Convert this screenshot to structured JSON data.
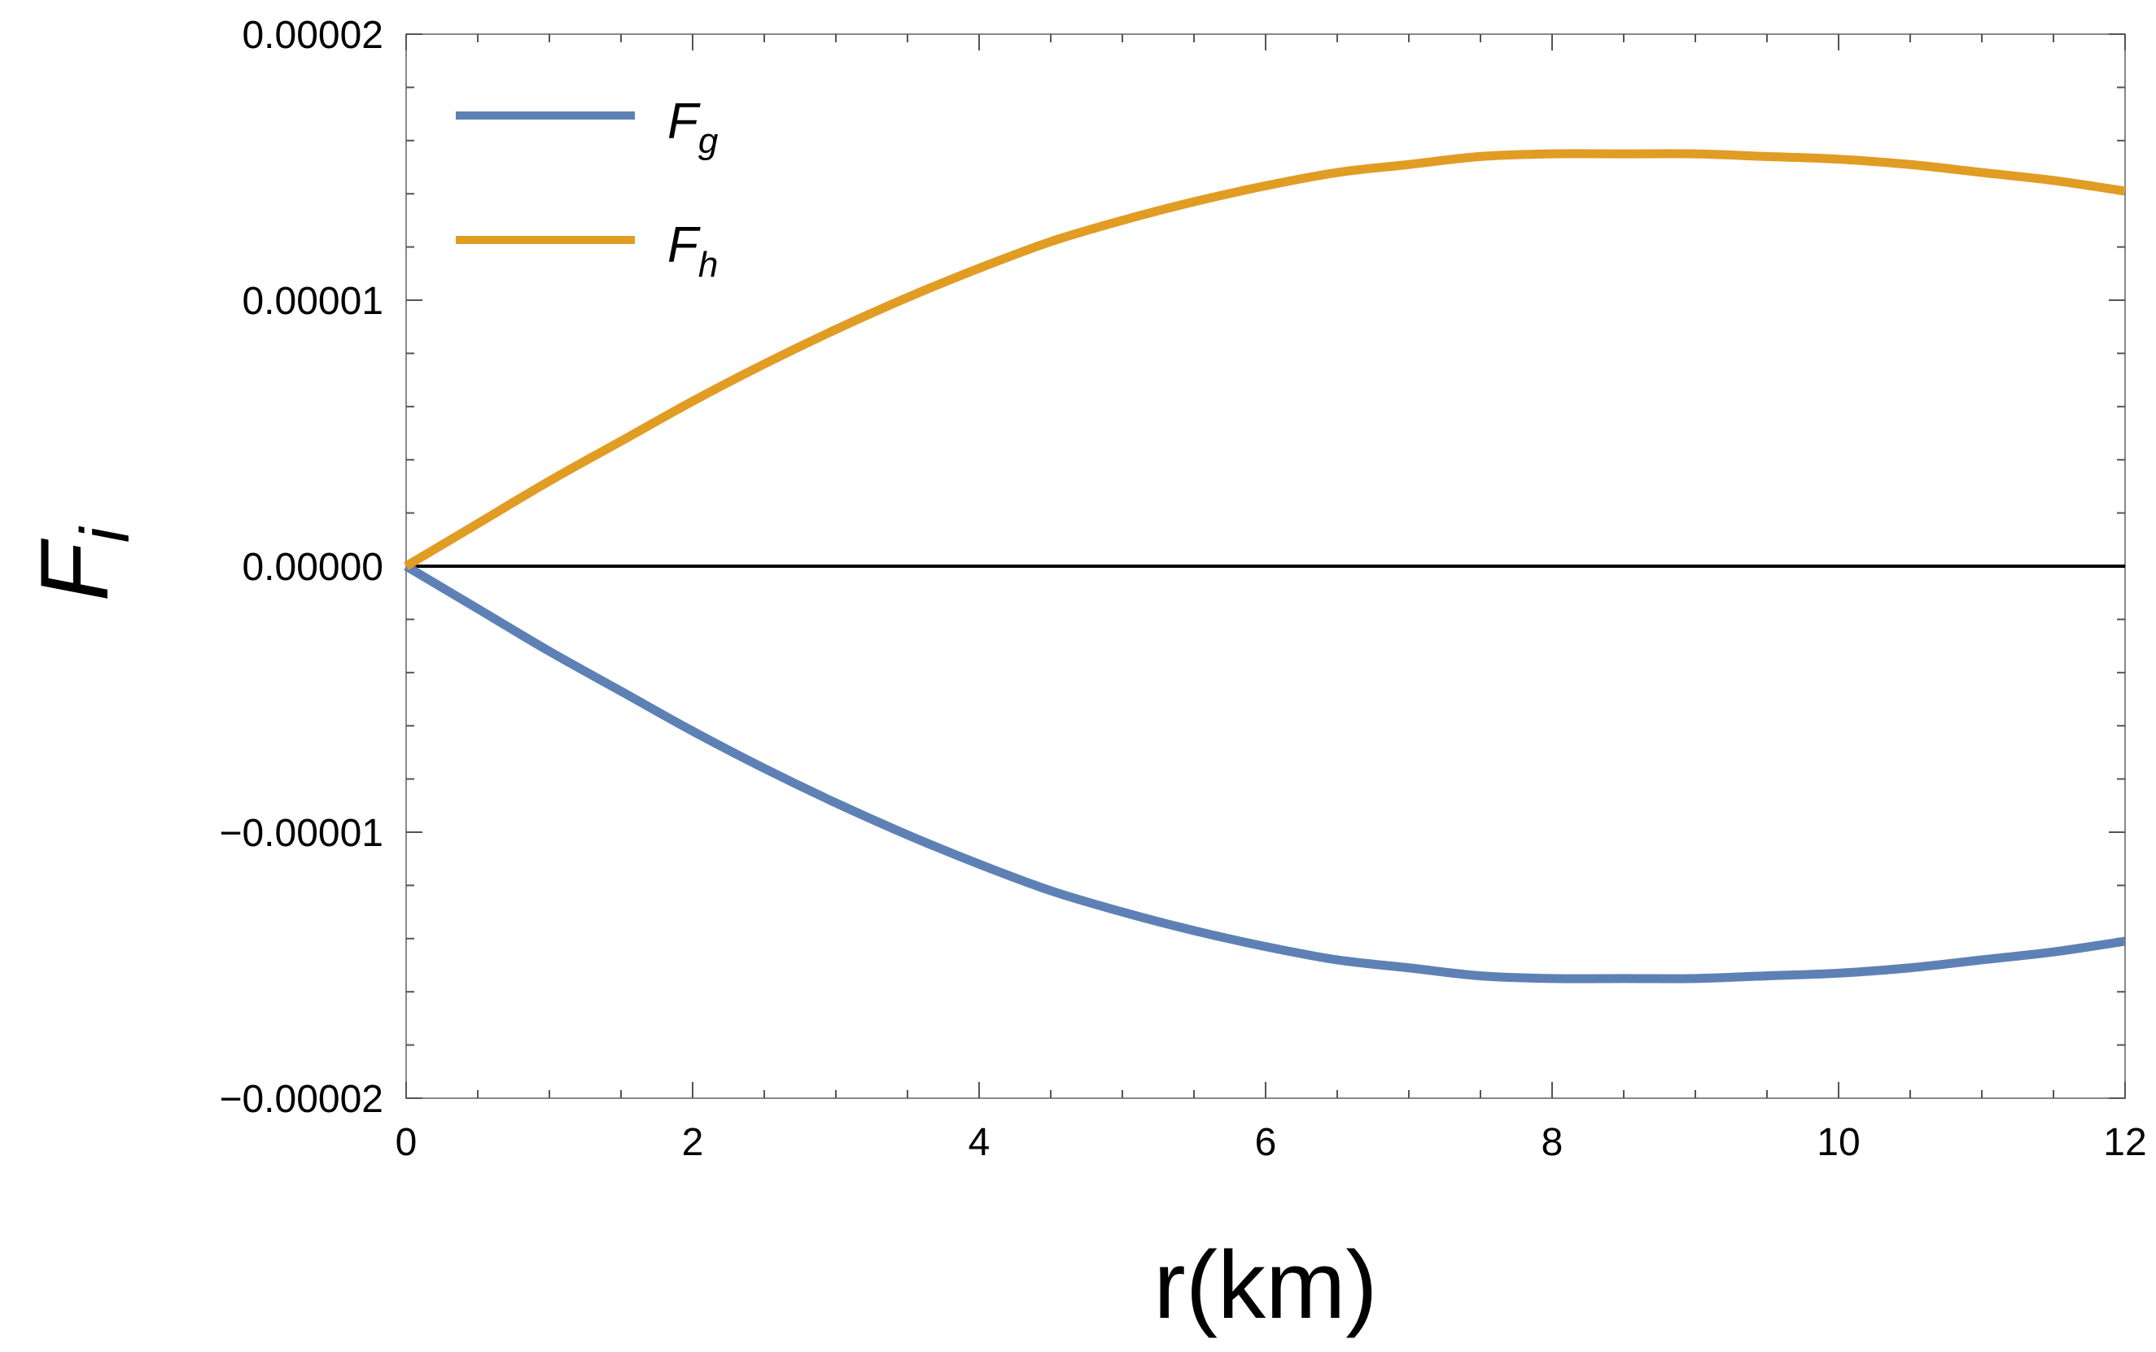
{
  "chart_data": {
    "type": "line",
    "title": "",
    "xlabel": "r(km)",
    "ylabel": {
      "main": "F",
      "sub": "i"
    },
    "xlim": [
      0,
      12
    ],
    "ylim": [
      -2e-05,
      2e-05
    ],
    "x_ticks": [
      0,
      2,
      4,
      6,
      8,
      10,
      12
    ],
    "x_tick_labels": [
      "0",
      "2",
      "4",
      "6",
      "8",
      "10",
      "12"
    ],
    "y_ticks": [
      -2e-05,
      -1e-05,
      0,
      1e-05,
      2e-05
    ],
    "y_tick_labels": [
      "−0.00002",
      "−0.00001",
      "0.00000",
      "0.00001",
      "0.00002"
    ],
    "grid": false,
    "zero_line": true,
    "legend_position": "top-left",
    "series": [
      {
        "name": {
          "main": "F",
          "sub": "g"
        },
        "color": "#5e81b5",
        "x": [
          0,
          0.5,
          1,
          1.5,
          2,
          2.5,
          3,
          3.5,
          4,
          4.5,
          5,
          5.5,
          6,
          6.5,
          7,
          7.5,
          8,
          8.5,
          9,
          9.5,
          10,
          10.5,
          11,
          11.5,
          12
        ],
        "y": [
          0,
          -1.6e-06,
          -3.2e-06,
          -4.7e-06,
          -6.2e-06,
          -7.6e-06,
          -8.9e-06,
          -1.01e-05,
          -1.12e-05,
          -1.22e-05,
          -1.3e-05,
          -1.37e-05,
          -1.43e-05,
          -1.48e-05,
          -1.51e-05,
          -1.54e-05,
          -1.55e-05,
          -1.55e-05,
          -1.55e-05,
          -1.54e-05,
          -1.53e-05,
          -1.51e-05,
          -1.48e-05,
          -1.45e-05,
          -1.41e-05
        ]
      },
      {
        "name": {
          "main": "F",
          "sub": "h"
        },
        "color": "#e19c24",
        "x": [
          0,
          0.5,
          1,
          1.5,
          2,
          2.5,
          3,
          3.5,
          4,
          4.5,
          5,
          5.5,
          6,
          6.5,
          7,
          7.5,
          8,
          8.5,
          9,
          9.5,
          10,
          10.5,
          11,
          11.5,
          12
        ],
        "y": [
          0,
          1.6e-06,
          3.2e-06,
          4.7e-06,
          6.2e-06,
          7.6e-06,
          8.9e-06,
          1.01e-05,
          1.12e-05,
          1.22e-05,
          1.3e-05,
          1.37e-05,
          1.43e-05,
          1.48e-05,
          1.51e-05,
          1.54e-05,
          1.55e-05,
          1.55e-05,
          1.55e-05,
          1.54e-05,
          1.53e-05,
          1.51e-05,
          1.48e-05,
          1.45e-05,
          1.41e-05
        ]
      }
    ]
  }
}
